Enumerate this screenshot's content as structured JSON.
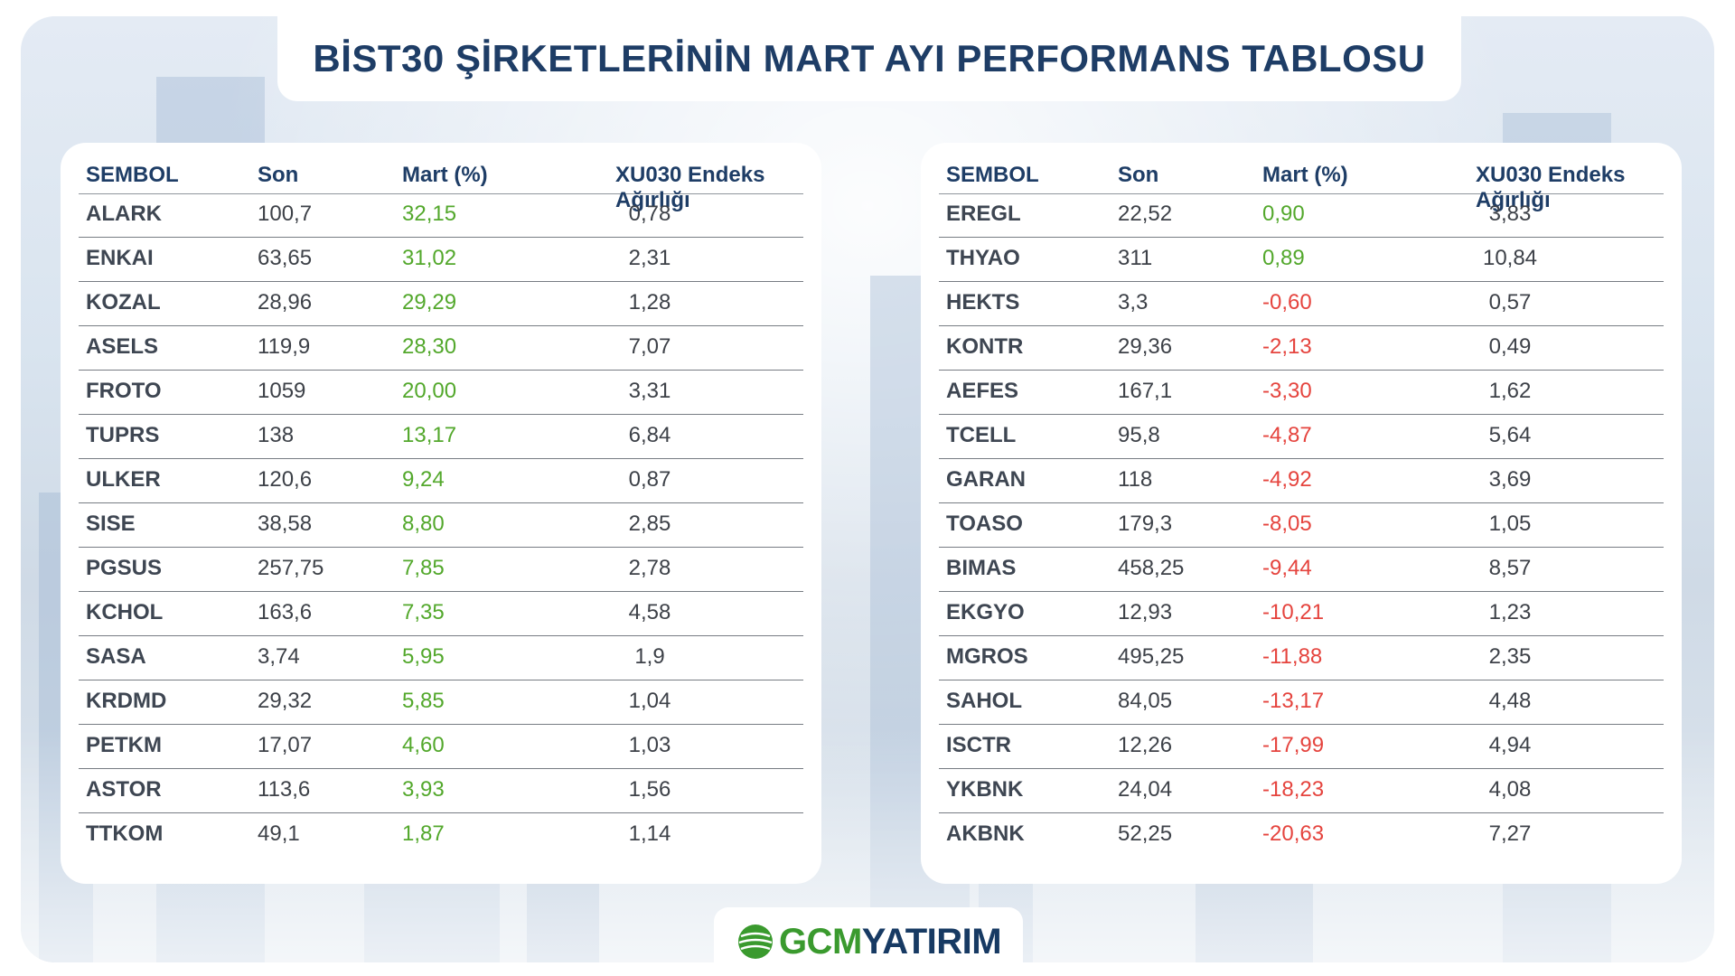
{
  "title": "BİST30 ŞİRKETLERİNİN MART AYI PERFORMANS TABLOSU",
  "headers": {
    "symbol": "SEMBOL",
    "last": "Son",
    "march": "Mart (%)",
    "weight": "XU030 Endeks Ağırlığı"
  },
  "left_table": [
    {
      "symbol": "ALARK",
      "last": "100,7",
      "march": "32,15",
      "weight": "0,78"
    },
    {
      "symbol": "ENKAI",
      "last": "63,65",
      "march": "31,02",
      "weight": "2,31"
    },
    {
      "symbol": "KOZAL",
      "last": "28,96",
      "march": "29,29",
      "weight": "1,28"
    },
    {
      "symbol": "ASELS",
      "last": "119,9",
      "march": "28,30",
      "weight": "7,07"
    },
    {
      "symbol": "FROTO",
      "last": "1059",
      "march": "20,00",
      "weight": "3,31"
    },
    {
      "symbol": "TUPRS",
      "last": "138",
      "march": "13,17",
      "weight": "6,84"
    },
    {
      "symbol": "ULKER",
      "last": "120,6",
      "march": "9,24",
      "weight": "0,87"
    },
    {
      "symbol": "SISE",
      "last": "38,58",
      "march": "8,80",
      "weight": "2,85"
    },
    {
      "symbol": "PGSUS",
      "last": "257,75",
      "march": "7,85",
      "weight": "2,78"
    },
    {
      "symbol": "KCHOL",
      "last": "163,6",
      "march": "7,35",
      "weight": "4,58"
    },
    {
      "symbol": "SASA",
      "last": "3,74",
      "march": "5,95",
      "weight": "1,9"
    },
    {
      "symbol": "KRDMD",
      "last": "29,32",
      "march": "5,85",
      "weight": "1,04"
    },
    {
      "symbol": "PETKM",
      "last": "17,07",
      "march": "4,60",
      "weight": "1,03"
    },
    {
      "symbol": "ASTOR",
      "last": "113,6",
      "march": "3,93",
      "weight": "1,56"
    },
    {
      "symbol": "TTKOM",
      "last": "49,1",
      "march": "1,87",
      "weight": "1,14"
    }
  ],
  "right_table": [
    {
      "symbol": "EREGL",
      "last": "22,52",
      "march": "0,90",
      "weight": "3,83"
    },
    {
      "symbol": "THYAO",
      "last": "311",
      "march": "0,89",
      "weight": "10,84"
    },
    {
      "symbol": "HEKTS",
      "last": "3,3",
      "march": "-0,60",
      "weight": "0,57"
    },
    {
      "symbol": "KONTR",
      "last": "29,36",
      "march": "-2,13",
      "weight": "0,49"
    },
    {
      "symbol": "AEFES",
      "last": "167,1",
      "march": "-3,30",
      "weight": "1,62"
    },
    {
      "symbol": "TCELL",
      "last": "95,8",
      "march": "-4,87",
      "weight": "5,64"
    },
    {
      "symbol": "GARAN",
      "last": "118",
      "march": "-4,92",
      "weight": "3,69"
    },
    {
      "symbol": "TOASO",
      "last": "179,3",
      "march": "-8,05",
      "weight": "1,05"
    },
    {
      "symbol": "BIMAS",
      "last": "458,25",
      "march": "-9,44",
      "weight": "8,57"
    },
    {
      "symbol": "EKGYO",
      "last": "12,93",
      "march": "-10,21",
      "weight": "1,23"
    },
    {
      "symbol": "MGROS",
      "last": "495,25",
      "march": "-11,88",
      "weight": "2,35"
    },
    {
      "symbol": "SAHOL",
      "last": "84,05",
      "march": "-13,17",
      "weight": "4,48"
    },
    {
      "symbol": "ISCTR",
      "last": "12,26",
      "march": "-17,99",
      "weight": "4,94"
    },
    {
      "symbol": "YKBNK",
      "last": "24,04",
      "march": "-18,23",
      "weight": "4,08"
    },
    {
      "symbol": "AKBNK",
      "last": "52,25",
      "march": "-20,63",
      "weight": "7,27"
    }
  ],
  "logo": {
    "part1": "GCM",
    "part2": "YATIRIM"
  },
  "colors": {
    "title": "#1e3d66",
    "positive": "#53a82c",
    "negative": "#e5443e",
    "logo_green": "#3a9a2e",
    "logo_navy": "#173a63"
  }
}
